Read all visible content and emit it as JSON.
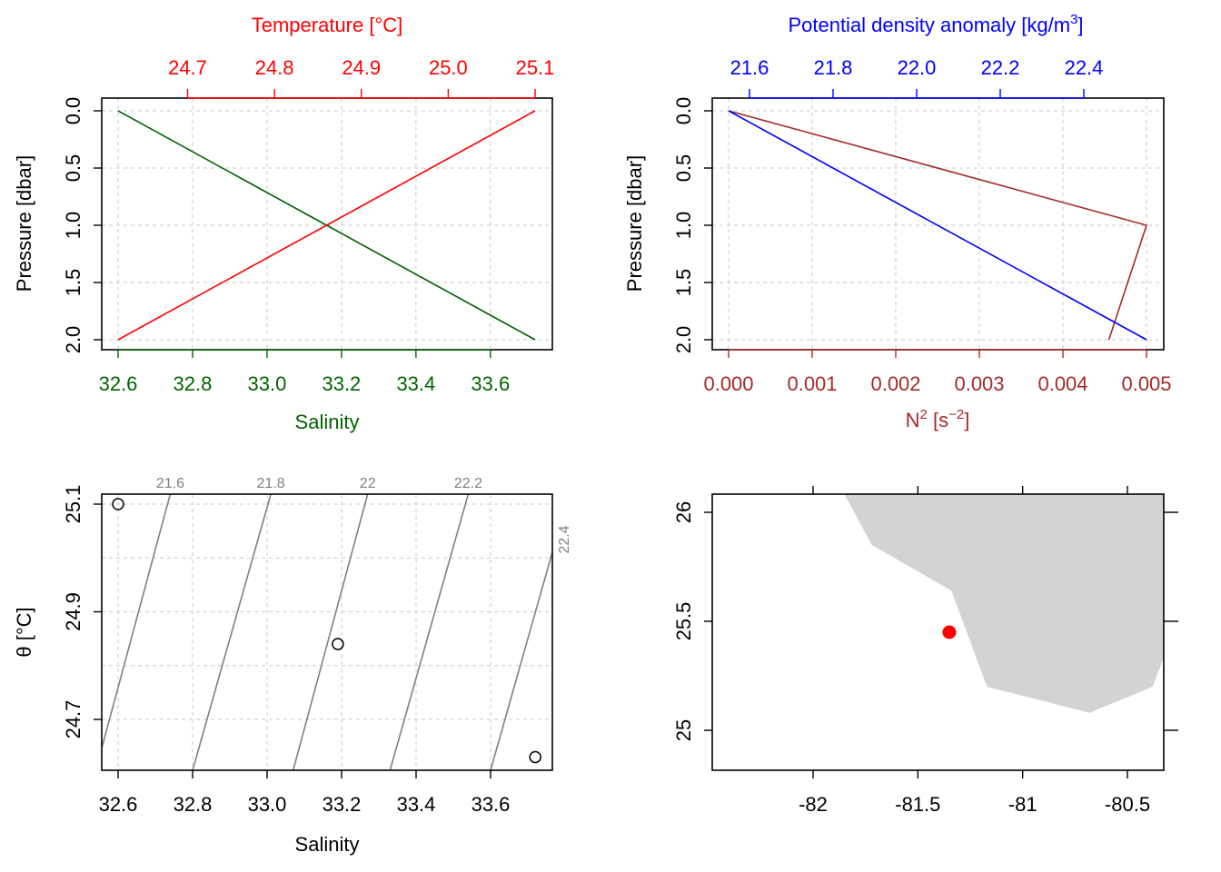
{
  "colors": {
    "salinity": "#006400",
    "temperature": "#ff0000",
    "density": "#0000ff",
    "n2": "#a52a2a",
    "isopycnal": "#808080",
    "grid": "#d3d3d3",
    "land": "#d3d3d3",
    "station": "#ff0000",
    "axis": "#000000"
  },
  "chart_data": [
    {
      "id": "panel-ts-profile",
      "type": "line",
      "ylabel": "Pressure [dbar]",
      "ylim": [
        2.0,
        0.0
      ],
      "y_ticks": [
        "0.0",
        "0.5",
        "1.0",
        "1.5",
        "2.0"
      ],
      "y_tick_values": [
        0.0,
        0.5,
        1.0,
        1.5,
        2.0
      ],
      "grid": true,
      "bottom_axis": {
        "label": "Salinity",
        "range": [
          32.6,
          33.72
        ],
        "ticks": [
          "32.6",
          "32.8",
          "33.0",
          "33.2",
          "33.4",
          "33.6"
        ],
        "tick_values": [
          32.6,
          32.8,
          33.0,
          33.2,
          33.4,
          33.6
        ]
      },
      "top_axis": {
        "label": "Temperature [°C]",
        "range": [
          24.62,
          25.1
        ],
        "ticks": [
          "24.7",
          "24.8",
          "24.9",
          "25.0",
          "25.1"
        ],
        "tick_values": [
          24.7,
          24.8,
          24.9,
          25.0,
          25.1
        ]
      },
      "series": [
        {
          "axis": "bottom",
          "pressure": [
            0,
            1,
            2
          ],
          "values": [
            32.6,
            33.16,
            33.72
          ]
        },
        {
          "axis": "top",
          "pressure": [
            0,
            1,
            2
          ],
          "values": [
            25.1,
            24.86,
            24.62
          ]
        }
      ]
    },
    {
      "id": "panel-density-profile",
      "type": "line",
      "ylabel": "Pressure [dbar]",
      "ylim": [
        2.0,
        0.0
      ],
      "y_ticks": [
        "0.0",
        "0.5",
        "1.0",
        "1.5",
        "2.0"
      ],
      "y_tick_values": [
        0.0,
        0.5,
        1.0,
        1.5,
        2.0
      ],
      "grid": true,
      "bottom_axis": {
        "label_base": "N",
        "label_sup": "2",
        "label_mid": " [s",
        "label_sup2": "−2",
        "label_end": "]",
        "range": [
          0.0,
          0.005
        ],
        "ticks": [
          "0.000",
          "0.001",
          "0.002",
          "0.003",
          "0.004",
          "0.005"
        ],
        "tick_values": [
          0.0,
          0.001,
          0.002,
          0.003,
          0.004,
          0.005
        ]
      },
      "top_axis": {
        "label_base": "Potential density anomaly [kg/m",
        "label_sup": "3",
        "label_end": "]",
        "range": [
          21.55,
          22.55
        ],
        "ticks": [
          "21.6",
          "21.8",
          "22.0",
          "22.2",
          "22.4"
        ],
        "tick_values": [
          21.6,
          21.8,
          22.0,
          22.2,
          22.4
        ]
      },
      "series": [
        {
          "axis": "bottom",
          "pressure": [
            0,
            1,
            2
          ],
          "values": [
            0.0,
            0.005,
            0.00455
          ]
        },
        {
          "axis": "top",
          "pressure": [
            0,
            2
          ],
          "values": [
            21.55,
            22.55
          ]
        }
      ]
    },
    {
      "id": "panel-ts-diagram",
      "type": "scatter",
      "xlabel": "Salinity",
      "ylabel": "θ [°C]",
      "xlim": [
        32.55,
        33.77
      ],
      "ylim": [
        24.62,
        25.12
      ],
      "x_ticks": [
        "32.6",
        "32.8",
        "33.0",
        "33.2",
        "33.4",
        "33.6"
      ],
      "x_tick_values": [
        32.6,
        32.8,
        33.0,
        33.2,
        33.4,
        33.6
      ],
      "y_ticks": [
        "24.7",
        "24.9",
        "25.1"
      ],
      "y_tick_values": [
        24.7,
        24.9,
        25.1
      ],
      "grid": true,
      "points": [
        {
          "salinity": 32.6,
          "theta": 25.1
        },
        {
          "salinity": 33.19,
          "theta": 24.84
        },
        {
          "salinity": 33.72,
          "theta": 24.63
        }
      ],
      "isopycnals": [
        {
          "label": "21.6",
          "s_top": 32.74,
          "s_bottom": 32.54
        },
        {
          "label": "21.8",
          "s_top": 33.01,
          "s_bottom": 32.8
        },
        {
          "label": "22",
          "s_top": 33.27,
          "s_bottom": 33.07
        },
        {
          "label": "22.2",
          "s_top": 33.54,
          "s_bottom": 33.33
        },
        {
          "label": "22.4",
          "s_top": 33.81,
          "s_bottom": 33.6
        }
      ]
    },
    {
      "id": "panel-map",
      "type": "map",
      "xlim": [
        -82.5,
        -80.2
      ],
      "ylim": [
        24.83,
        26.1
      ],
      "x_ticks": [
        "-82",
        "-81.5",
        "-81",
        "-80.5"
      ],
      "x_tick_values": [
        -82,
        -81.5,
        -81,
        -80.5
      ],
      "y_ticks": [
        "25",
        "25.5",
        "26"
      ],
      "y_tick_values": [
        25,
        25.5,
        26
      ],
      "station": {
        "lon": -81.35,
        "lat": 25.45
      },
      "land_polygon": [
        [
          -81.86,
          26.1
        ],
        [
          -81.72,
          25.85
        ],
        [
          -81.34,
          25.64
        ],
        [
          -81.17,
          25.2
        ],
        [
          -80.68,
          25.08
        ],
        [
          -80.38,
          25.2
        ],
        [
          -80.2,
          25.65
        ],
        [
          -80.2,
          26.1
        ]
      ]
    }
  ]
}
